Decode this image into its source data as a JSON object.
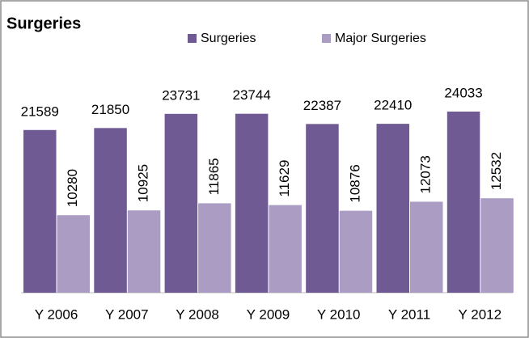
{
  "chart_data": {
    "type": "bar",
    "title": "Surgeries",
    "categories": [
      "Y 2006",
      "Y 2007",
      "Y 2008",
      "Y 2009",
      "Y 2010",
      "Y 2011",
      "Y 2012"
    ],
    "series": [
      {
        "name": "Surgeries",
        "color": "#6f5a93",
        "values": [
          21589,
          21850,
          23731,
          23744,
          22387,
          22410,
          24033
        ]
      },
      {
        "name": "Major Surgeries",
        "color": "#ab9cc4",
        "values": [
          10280,
          10925,
          11865,
          11629,
          10876,
          12073,
          12532
        ]
      }
    ]
  }
}
